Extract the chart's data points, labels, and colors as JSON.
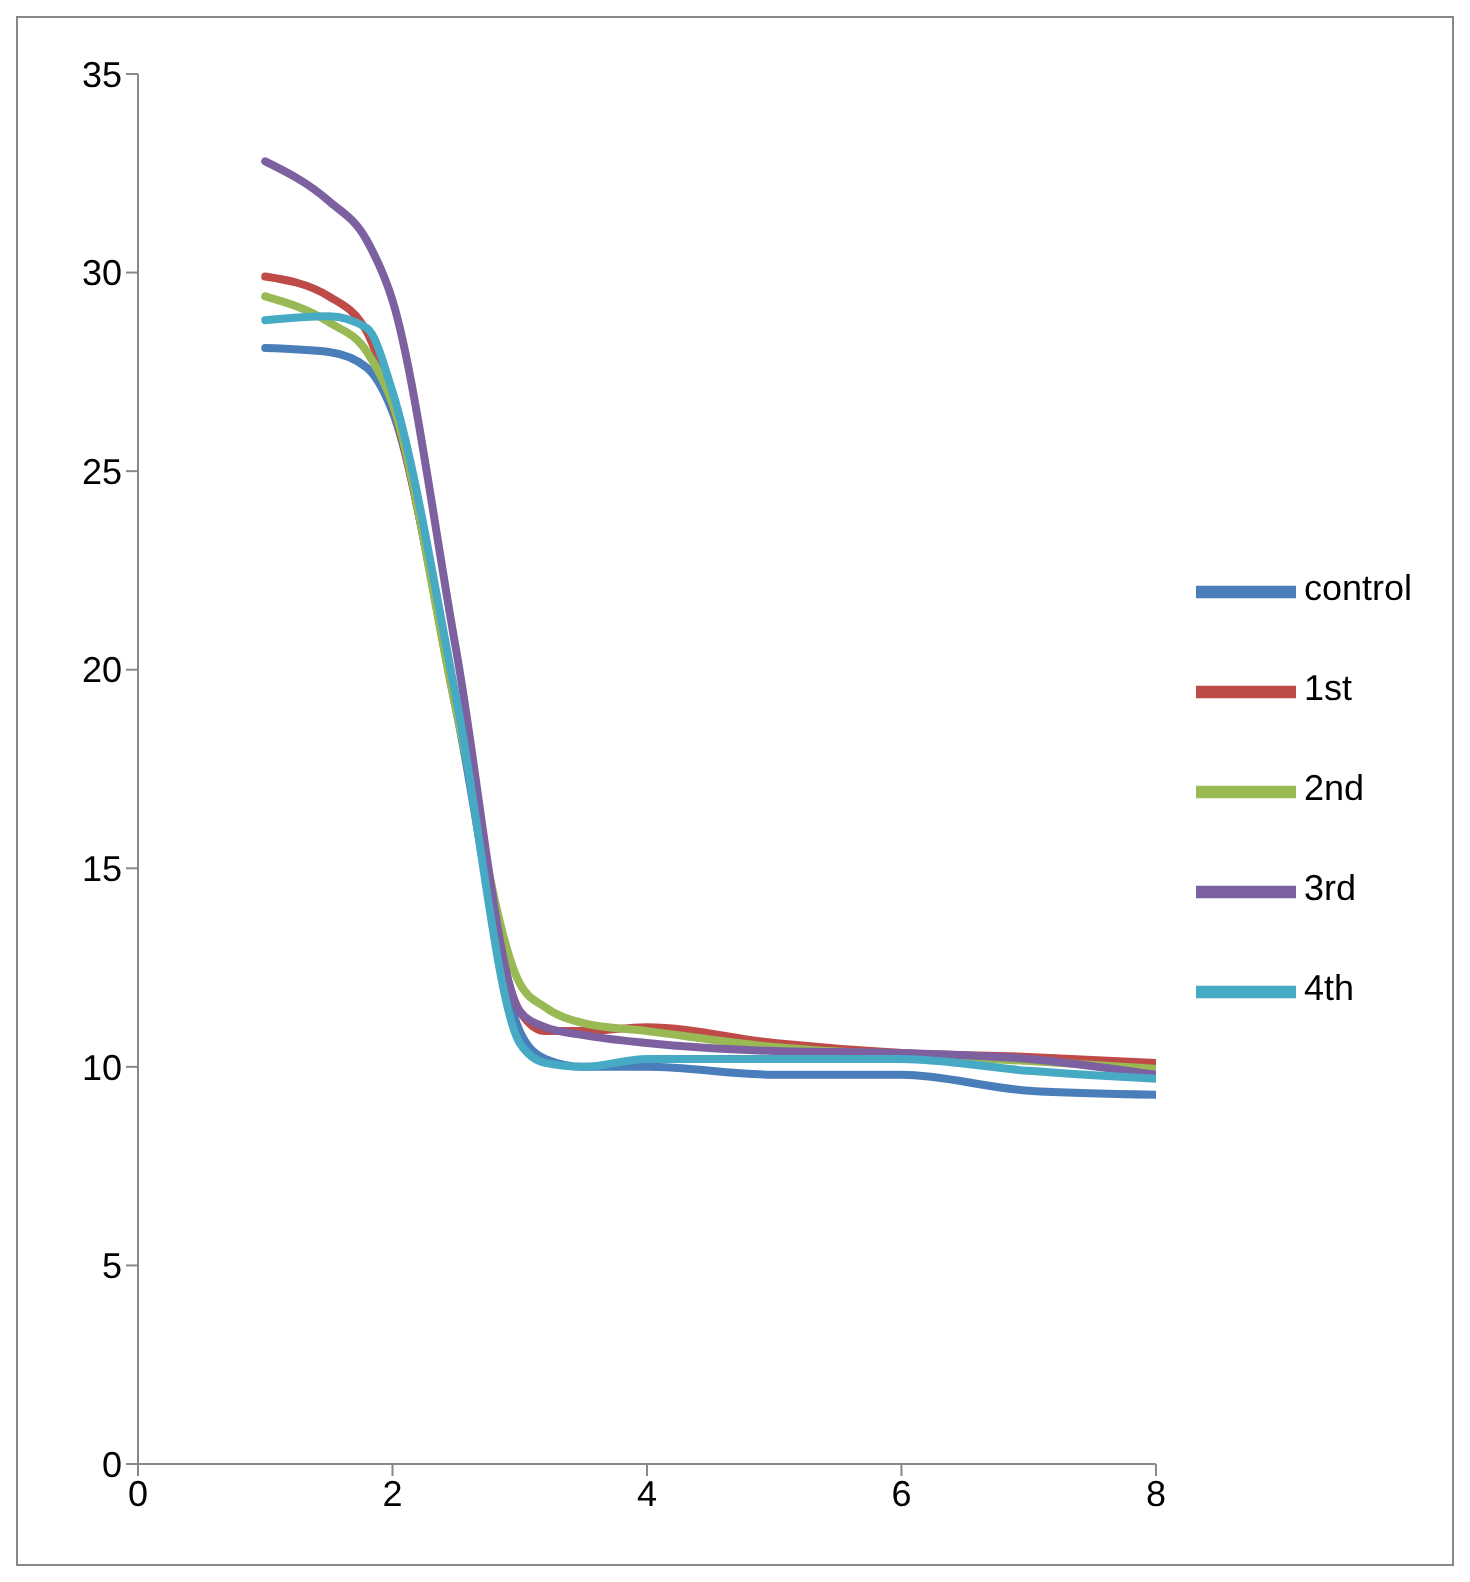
{
  "chart_data": {
    "type": "line",
    "x": [
      1,
      1.5,
      1.8,
      2,
      2.5,
      3,
      3.2,
      3.5,
      4,
      5,
      6,
      7,
      8
    ],
    "series": [
      {
        "name": "control",
        "color": "#4a7ebb",
        "values": [
          28.1,
          28.0,
          27.6,
          26.5,
          19.0,
          10.9,
          10.2,
          10.0,
          10.0,
          9.8,
          9.8,
          9.4,
          9.3
        ]
      },
      {
        "name": "1st",
        "color": "#be4b48",
        "values": [
          29.9,
          29.4,
          28.5,
          26.7,
          19.2,
          11.4,
          10.9,
          10.9,
          11.0,
          10.6,
          10.35,
          10.25,
          10.1
        ]
      },
      {
        "name": "2nd",
        "color": "#98b954",
        "values": [
          29.4,
          28.75,
          28.0,
          26.7,
          19.0,
          12.1,
          11.5,
          11.1,
          10.9,
          10.5,
          10.3,
          10.15,
          9.95
        ]
      },
      {
        "name": "3rd",
        "color": "#7d60a0",
        "values": [
          32.8,
          31.8,
          30.8,
          29.3,
          20.5,
          11.4,
          11.0,
          10.8,
          10.6,
          10.4,
          10.35,
          10.2,
          9.8
        ]
      },
      {
        "name": "4th",
        "color": "#46aac5",
        "values": [
          28.8,
          28.9,
          28.6,
          27.0,
          19.3,
          10.6,
          10.1,
          10.0,
          10.2,
          10.2,
          10.2,
          9.9,
          9.7
        ]
      }
    ],
    "xlim": [
      0,
      8
    ],
    "xticks": [
      0,
      2,
      4,
      6,
      8
    ],
    "ylim": [
      0,
      35
    ],
    "yticks": [
      0,
      5,
      10,
      15,
      20,
      25,
      30,
      35
    ],
    "grid": false,
    "legend": "right",
    "marker": "none",
    "line_style": "solid"
  }
}
